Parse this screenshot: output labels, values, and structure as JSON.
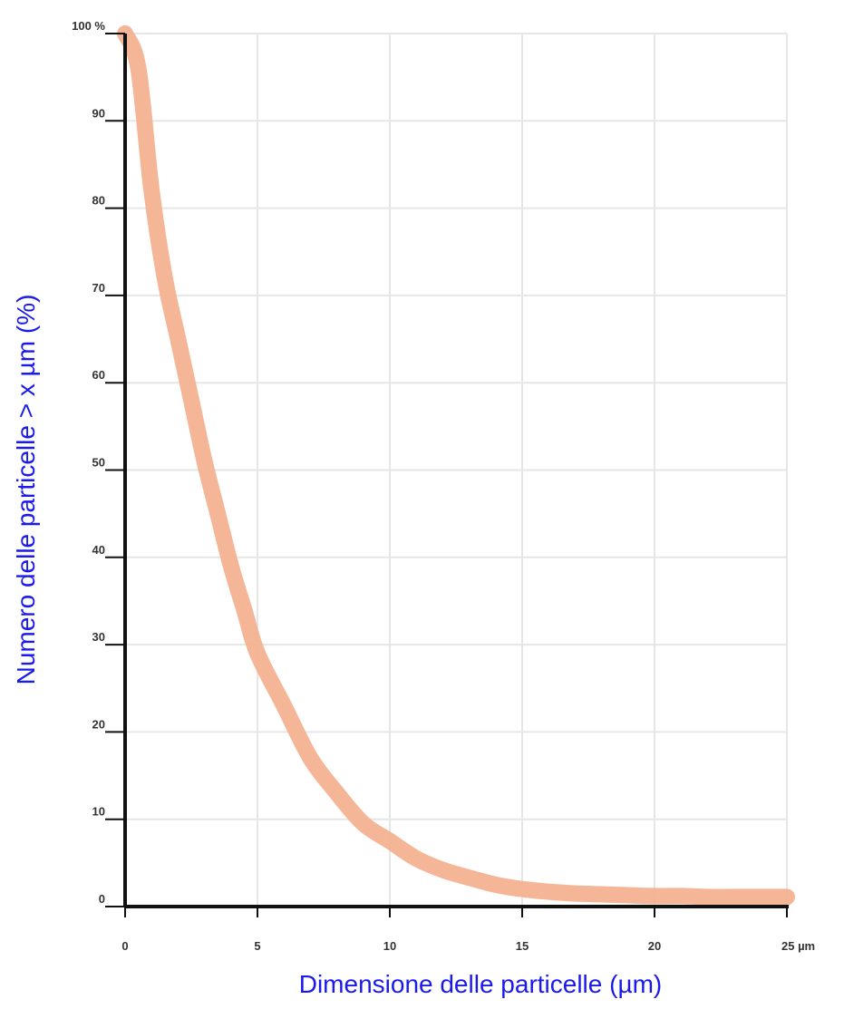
{
  "colors": {
    "curve": "#f3b291",
    "axis": "#111111",
    "grid": "#e6e6e6",
    "axis_title": "#1a1aee"
  },
  "chart_data": {
    "type": "line",
    "title": "",
    "xlabel": "Dimensione delle particelle (µm)",
    "ylabel": "Numero delle particelle > x µm (%)",
    "xlim": [
      0,
      25
    ],
    "ylim": [
      0,
      100
    ],
    "x_ticks": [
      {
        "value": 0,
        "label": "0"
      },
      {
        "value": 5,
        "label": "5"
      },
      {
        "value": 10,
        "label": "10"
      },
      {
        "value": 15,
        "label": "15"
      },
      {
        "value": 20,
        "label": "20"
      },
      {
        "value": 25,
        "label": "25 µm"
      }
    ],
    "y_ticks": [
      {
        "value": 0,
        "label": "0"
      },
      {
        "value": 10,
        "label": "10"
      },
      {
        "value": 20,
        "label": "20"
      },
      {
        "value": 30,
        "label": "30"
      },
      {
        "value": 40,
        "label": "40"
      },
      {
        "value": 50,
        "label": "50"
      },
      {
        "value": 60,
        "label": "60"
      },
      {
        "value": 70,
        "label": "70"
      },
      {
        "value": 80,
        "label": "80"
      },
      {
        "value": 90,
        "label": "90"
      },
      {
        "value": 100,
        "label": "100 %"
      }
    ],
    "grid": true,
    "legend": "none",
    "series": [
      {
        "x": [
          0,
          0.5,
          1,
          1.5,
          2,
          2.5,
          3,
          3.5,
          4,
          4.5,
          5,
          6,
          7,
          8,
          9,
          10,
          11,
          12,
          13,
          14,
          15,
          16,
          17,
          18,
          19,
          20,
          21,
          22,
          23,
          24,
          25
        ],
        "y": [
          100,
          96,
          82,
          72,
          65,
          58,
          51,
          45,
          39,
          34,
          29,
          23,
          17,
          13,
          9.5,
          7.5,
          5.5,
          4.2,
          3.3,
          2.5,
          2,
          1.7,
          1.5,
          1.4,
          1.3,
          1.2,
          1.2,
          1.1,
          1.1,
          1.1,
          1.1
        ]
      }
    ]
  }
}
